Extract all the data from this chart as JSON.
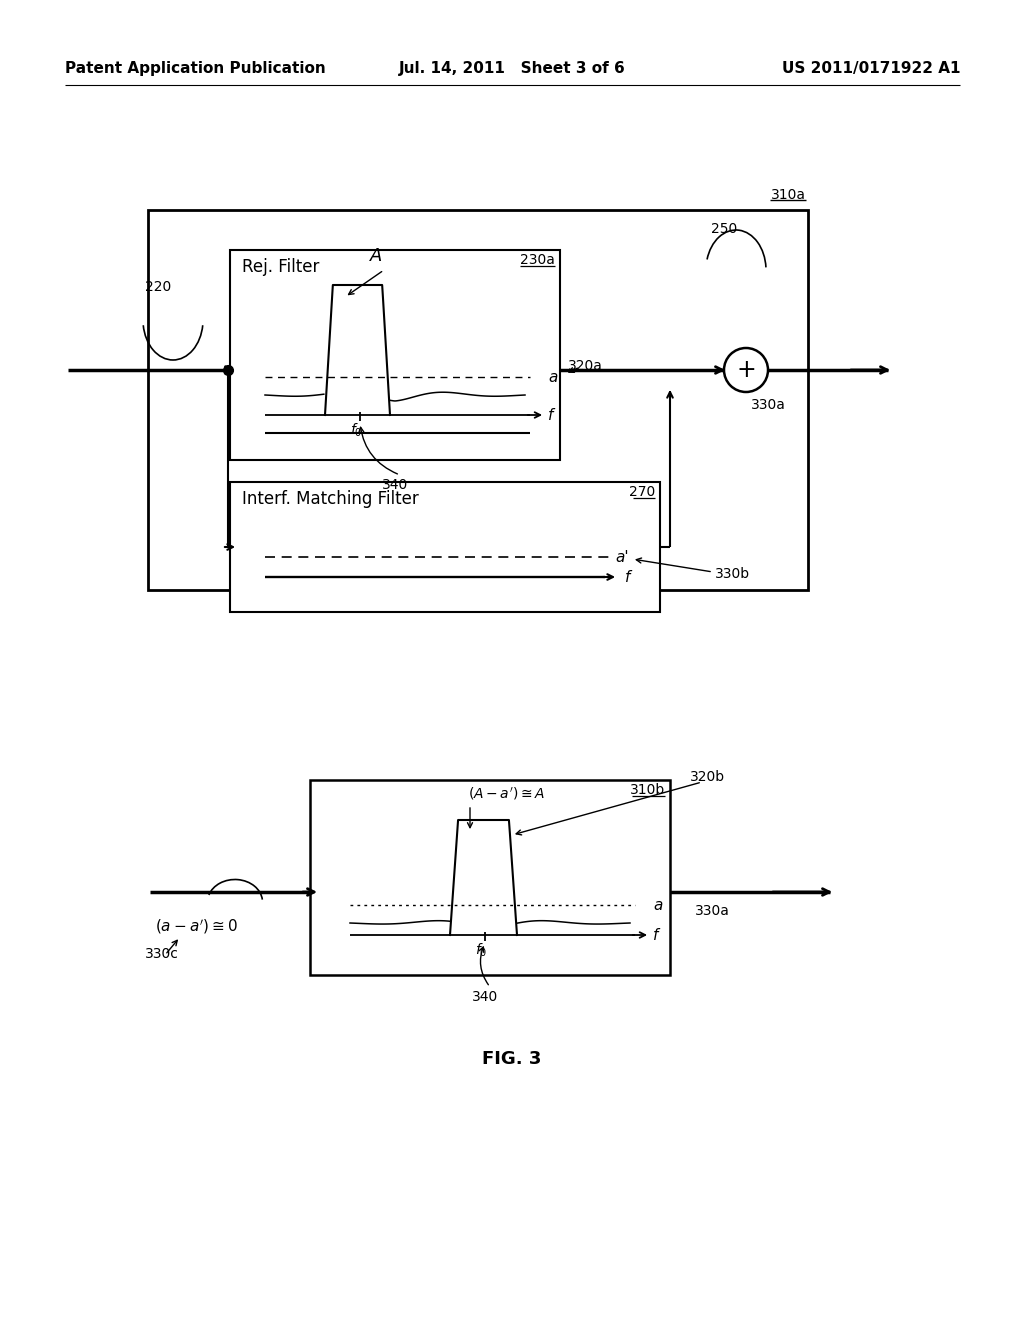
{
  "header_left": "Patent Application Publication",
  "header_mid": "Jul. 14, 2011   Sheet 3 of 6",
  "header_right": "US 2011/0171922 A1",
  "fig_label": "FIG. 3",
  "bg_color": "#ffffff"
}
